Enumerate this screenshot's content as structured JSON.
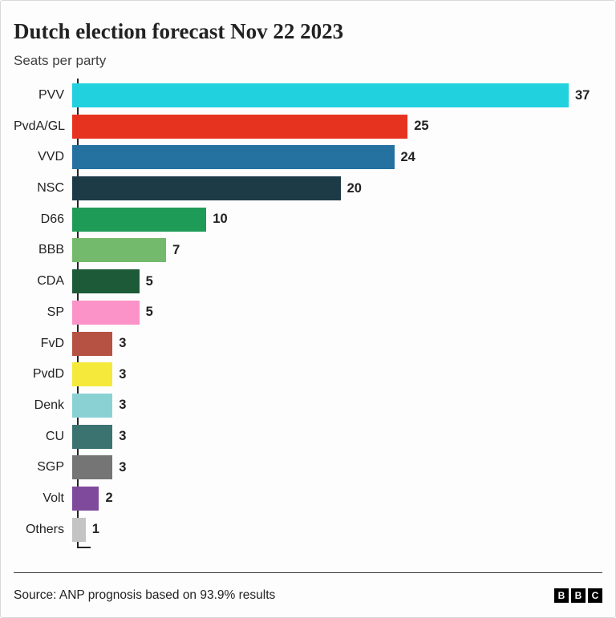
{
  "header": {
    "title": "Dutch election forecast Nov 22 2023",
    "subtitle": "Seats per party"
  },
  "chart_data": {
    "type": "bar",
    "orientation": "horizontal",
    "title": "Dutch election forecast Nov 22 2023",
    "subtitle": "Seats per party",
    "xlabel": "",
    "ylabel": "",
    "xlim": [
      0,
      37
    ],
    "grid": false,
    "legend": false,
    "value_labels": true,
    "categories": [
      "PVV",
      "PvdA/GL",
      "VVD",
      "NSC",
      "D66",
      "BBB",
      "CDA",
      "SP",
      "FvD",
      "PvdD",
      "Denk",
      "CU",
      "SGP",
      "Volt",
      "Others"
    ],
    "values": [
      37,
      25,
      24,
      20,
      10,
      7,
      5,
      5,
      3,
      3,
      3,
      3,
      3,
      2,
      1
    ],
    "colors": [
      "#21d1de",
      "#e6331f",
      "#25719f",
      "#1d3a47",
      "#1f9b58",
      "#74ba6c",
      "#1d5a38",
      "#fb92c8",
      "#b55243",
      "#f5e93b",
      "#8ad1d4",
      "#3b7370",
      "#757575",
      "#7f4a9b",
      "#c4c4c4"
    ]
  },
  "footer": {
    "source": "Source: ANP prognosis based on 93.9% results",
    "logo_letters": [
      "B",
      "B",
      "C"
    ]
  },
  "style": {
    "axis_color": "#262626",
    "text_color": "#222222",
    "subtitle_color": "#404040"
  }
}
